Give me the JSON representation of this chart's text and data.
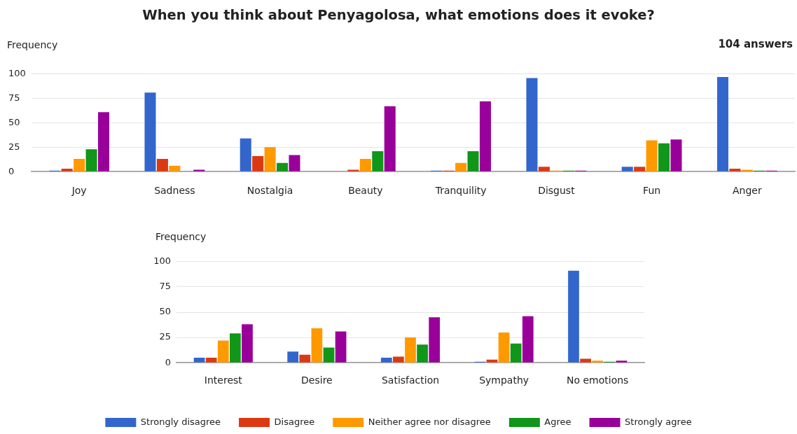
{
  "chart_data": [
    {
      "type": "bar",
      "title": "When you think about Penyagolosa, what emotions does it evoke?",
      "ylabel": "Frequency",
      "annotations": [
        "104 answers"
      ],
      "categories": [
        "Joy",
        "Sadness",
        "Nostalgia",
        "Beauty",
        "Tranquility",
        "Disgust",
        "Fun",
        "Anger"
      ],
      "series": [
        {
          "color": "#3366cc",
          "values": [
            1,
            81,
            34,
            0,
            1,
            96,
            5,
            97
          ]
        },
        {
          "color": "#dc3912",
          "values": [
            3,
            13,
            16,
            2,
            1,
            5,
            5,
            3
          ]
        },
        {
          "color": "#ff9900",
          "values": [
            13,
            6,
            25,
            13,
            9,
            1,
            32,
            2
          ]
        },
        {
          "color": "#109618",
          "values": [
            23,
            0,
            9,
            21,
            21,
            1,
            29,
            1
          ]
        },
        {
          "color": "#990099",
          "values": [
            61,
            2,
            17,
            67,
            72,
            1,
            33,
            1
          ]
        }
      ],
      "ylim": [
        0,
        100
      ],
      "yticks": [
        0,
        25,
        50,
        75,
        100
      ],
      "grid": "y"
    },
    {
      "type": "bar",
      "ylabel": "Frequency",
      "categories": [
        "Interest",
        "Desire",
        "Satisfaction",
        "Sympathy",
        "No emotions"
      ],
      "series": [
        {
          "name": "Strongly disagree",
          "color": "#3366cc",
          "values": [
            5,
            11,
            5,
            1,
            91
          ]
        },
        {
          "name": "Disagree",
          "color": "#dc3912",
          "values": [
            5,
            8,
            6,
            3,
            4
          ]
        },
        {
          "name": "Neither agree nor disagree",
          "color": "#ff9900",
          "values": [
            22,
            34,
            25,
            30,
            2
          ]
        },
        {
          "name": "Agree",
          "color": "#109618",
          "values": [
            29,
            15,
            18,
            19,
            1
          ]
        },
        {
          "name": "Strongly agree",
          "color": "#990099",
          "values": [
            38,
            31,
            45,
            46,
            2
          ]
        }
      ],
      "ylim": [
        0,
        100
      ],
      "yticks": [
        0,
        25,
        50,
        75,
        100
      ],
      "grid": "y",
      "legend": "bottom"
    }
  ]
}
